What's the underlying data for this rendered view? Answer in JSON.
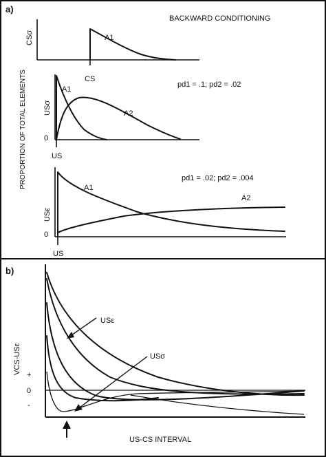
{
  "panel_a": {
    "label": "a)",
    "title": "BACKWARD CONDITIONING",
    "y_axis_title": "PROPORTION OF TOTAL ELEMENTS",
    "plot1": {
      "ylabel": "CSσ",
      "curve_label": "A1",
      "x_marker": "CS"
    },
    "plot2": {
      "ylabel": "USσ",
      "params": "pd1 = .1; pd2 = .02",
      "label_a1": "A1",
      "label_a2": "A2",
      "x_marker": "US",
      "zero": "0"
    },
    "plot3": {
      "ylabel": "USε",
      "params": "pd1 = .02; pd2 = .004",
      "label_a1": "A1",
      "label_a2": "A2",
      "x_marker": "US",
      "zero": "0"
    }
  },
  "panel_b": {
    "label": "b)",
    "ylabel": "VCS-USε",
    "plus": "+",
    "zero": "0",
    "minus": "-",
    "label_use": "USε",
    "label_usg": "USσ",
    "xlabel": "US-CS INTERVAL"
  }
}
